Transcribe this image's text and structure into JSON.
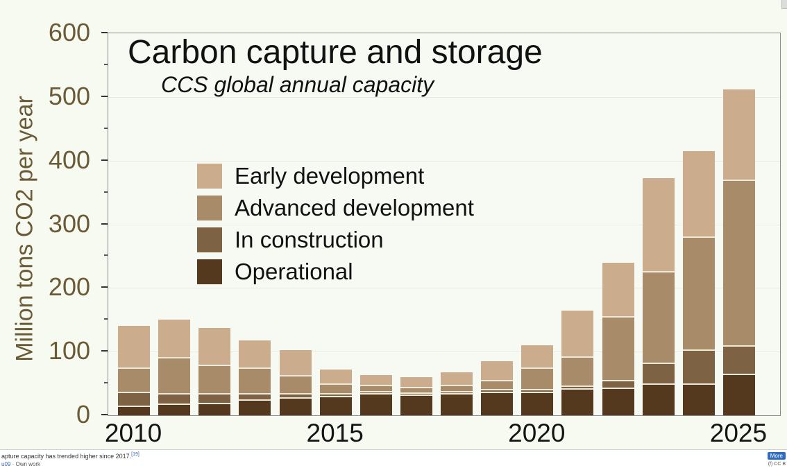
{
  "page": {
    "caption_text": "apture capacity has trended higher since 2017.",
    "caption_ref": "[19]",
    "caption_author": "u09",
    "caption_source": " · Own work",
    "more_badge_label": "More",
    "license_text": "(f) CC B"
  },
  "chart_data": {
    "type": "bar",
    "stacked": true,
    "title": "Carbon capture and storage",
    "subtitle": "CCS global annual capacity",
    "ylabel": "Million tons CO2 per year",
    "xlabel": "",
    "ylim": [
      0,
      600
    ],
    "yticks": [
      0,
      100,
      200,
      300,
      400,
      500,
      600
    ],
    "minor_tick_step": 50,
    "xtick_years": [
      2010,
      2015,
      2020,
      2025
    ],
    "grid": "faint-horizontal",
    "legend_position": "upper-left-inside",
    "legend_order": [
      "Early development",
      "Advanced development",
      "In construction",
      "Operational"
    ],
    "categories": [
      2010,
      2011,
      2012,
      2013,
      2014,
      2015,
      2016,
      2017,
      2018,
      2019,
      2020,
      2021,
      2022,
      2023,
      2024,
      2025
    ],
    "series": [
      {
        "name": "Operational",
        "color": "#54391e",
        "values": [
          15,
          18,
          20,
          25,
          28,
          30,
          35,
          33,
          35,
          37,
          37,
          42,
          44,
          50,
          50,
          65
        ]
      },
      {
        "name": "In construction",
        "color": "#7d6243",
        "values": [
          22,
          17,
          15,
          10,
          7,
          5,
          3,
          3,
          3,
          4,
          4,
          5,
          12,
          33,
          53,
          45
        ]
      },
      {
        "name": "Advanced development",
        "color": "#a88c69",
        "values": [
          38,
          57,
          45,
          40,
          28,
          15,
          10,
          9,
          10,
          15,
          34,
          46,
          100,
          143,
          178,
          260
        ]
      },
      {
        "name": "Early development",
        "color": "#cbac8c",
        "values": [
          65,
          58,
          57,
          43,
          39,
          22,
          15,
          15,
          19,
          29,
          35,
          72,
          84,
          146,
          134,
          142
        ]
      }
    ]
  }
}
